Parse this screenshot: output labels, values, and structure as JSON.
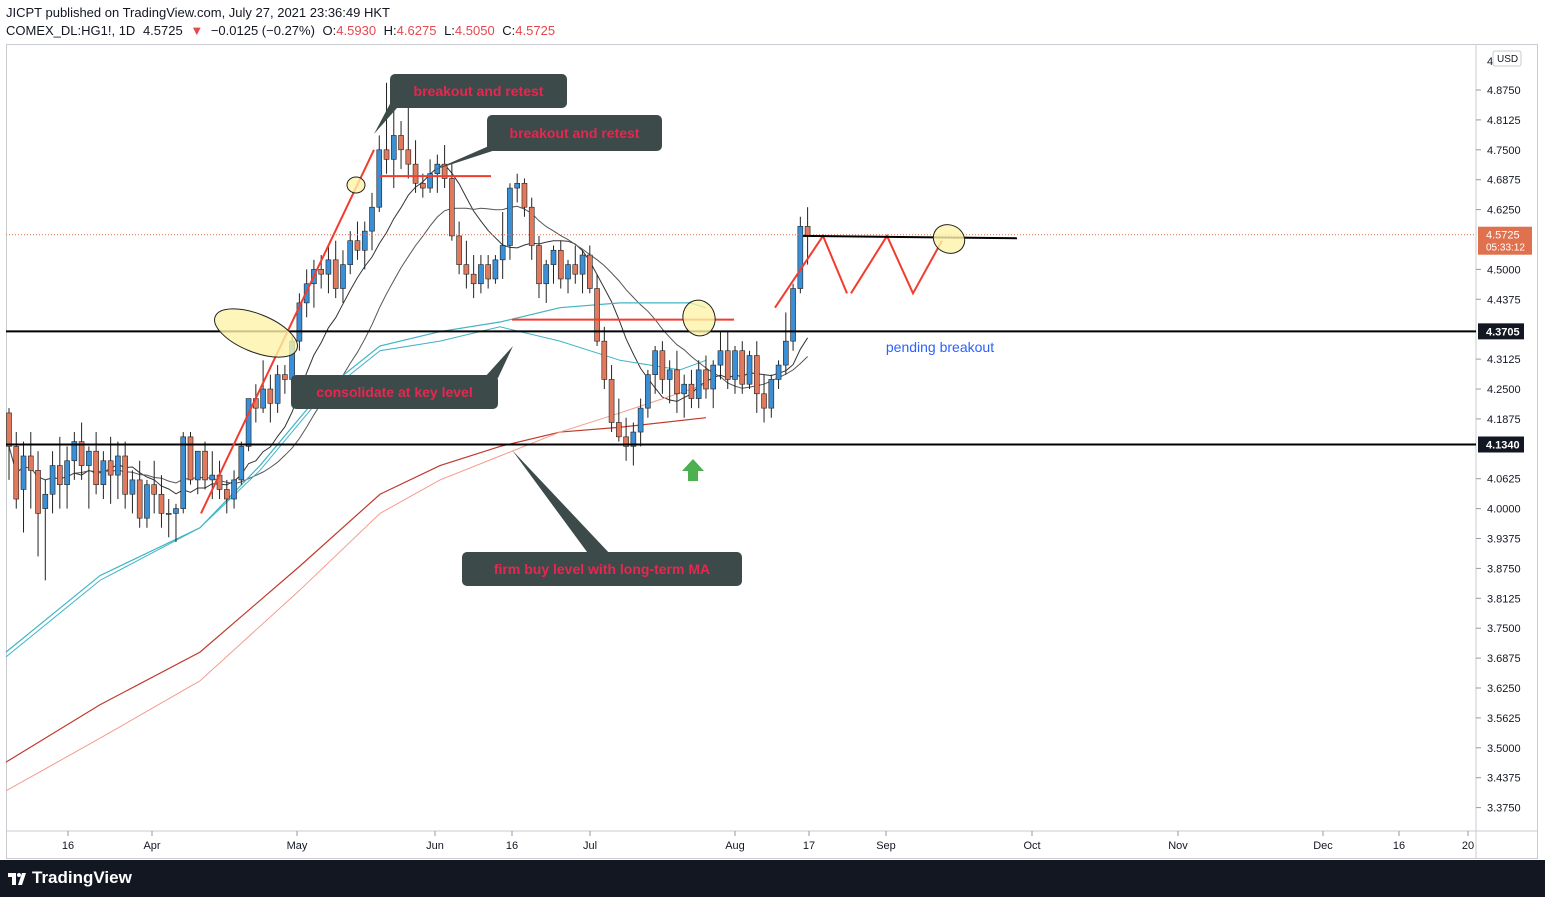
{
  "header": {
    "publisher": "JICPT published on TradingView.com, July 27, 2021 23:36:49 HKT",
    "symbol": "COMEX_DL:HG1!, 1D",
    "last": "4.5725",
    "change_arrow": "▼",
    "change": "−0.0125 (−0.27%)",
    "o_label": "O:",
    "o": "4.5930",
    "h_label": "H:",
    "h": "4.6275",
    "l_label": "L:",
    "l": "4.5050",
    "c_label": "C:",
    "c": "4.5725"
  },
  "footer": {
    "brand": "TradingView"
  },
  "colors": {
    "up": "#3a8fd6",
    "down": "#e07a5f",
    "ma_dark": "#333333",
    "ma_teal": "#40b4c4",
    "ma_red": "#c0392b",
    "ma_salmon": "#f39c8c",
    "trend_red": "#f23c2e",
    "annotation_bg": "#3d4a4a",
    "annotation_text": "#e8264f",
    "highlight_fill": "#fdf3a8",
    "price_label_bg": "#131722",
    "last_price_bg": "#e0714f",
    "arrow_green": "#4caf50",
    "text_blue": "#2962ff"
  },
  "chart_data": {
    "type": "candlestick",
    "title": "",
    "currency": "USD",
    "y_axis_ticks": [
      "4.8750",
      "4.8125",
      "4.7500",
      "4.6875",
      "4.6250",
      "4.5000",
      "4.4375",
      "4.3125",
      "4.2500",
      "4.1875",
      "4.0625",
      "4.0000",
      "3.9375",
      "3.8750",
      "3.8125",
      "3.7500",
      "3.6875",
      "3.6250",
      "3.5625",
      "3.5000",
      "3.4375",
      "3.3750"
    ],
    "y_axis_top_label": "4.",
    "ylim": [
      3.33,
      4.94
    ],
    "x_axis_ticks": [
      "16",
      "Apr",
      "May",
      "Jun",
      "16",
      "Jul",
      "Aug",
      "17",
      "Sep",
      "Oct",
      "Nov",
      "Dec",
      "16",
      "20"
    ],
    "last_price": "4.5725",
    "countdown": "05:33:12",
    "levels": [
      {
        "label": "4.3705",
        "value": 4.3705
      },
      {
        "label": "4.1340",
        "value": 4.134
      }
    ],
    "candles_ohlc": [
      [
        4.2,
        4.21,
        4.06,
        4.13
      ],
      [
        4.13,
        4.16,
        4.0,
        4.02
      ],
      [
        4.04,
        4.14,
        3.95,
        4.11
      ],
      [
        4.11,
        4.16,
        4.0,
        4.08
      ],
      [
        4.08,
        4.12,
        3.9,
        3.99
      ],
      [
        4.0,
        4.06,
        3.85,
        4.03
      ],
      [
        4.03,
        4.12,
        3.99,
        4.09
      ],
      [
        4.09,
        4.15,
        4.0,
        4.05
      ],
      [
        4.05,
        4.13,
        4.0,
        4.1
      ],
      [
        4.1,
        4.16,
        4.06,
        4.14
      ],
      [
        4.14,
        4.18,
        4.06,
        4.09
      ],
      [
        4.09,
        4.13,
        4.0,
        4.12
      ],
      [
        4.12,
        4.16,
        4.03,
        4.05
      ],
      [
        4.05,
        4.12,
        4.02,
        4.1
      ],
      [
        4.1,
        4.15,
        4.01,
        4.07
      ],
      [
        4.07,
        4.14,
        4.02,
        4.11
      ],
      [
        4.11,
        4.14,
        4.0,
        4.03
      ],
      [
        4.03,
        4.08,
        3.99,
        4.06
      ],
      [
        4.06,
        4.1,
        3.96,
        3.98
      ],
      [
        3.98,
        4.06,
        3.96,
        4.05
      ],
      [
        4.05,
        4.1,
        3.99,
        4.03
      ],
      [
        4.03,
        4.07,
        3.96,
        3.99
      ],
      [
        3.99,
        4.02,
        3.94,
        3.99
      ],
      [
        3.99,
        4.01,
        3.93,
        4.0
      ],
      [
        4.0,
        4.16,
        3.99,
        4.15
      ],
      [
        4.15,
        4.16,
        4.05,
        4.06
      ],
      [
        4.06,
        4.12,
        4.03,
        4.12
      ],
      [
        4.12,
        4.14,
        4.04,
        4.06
      ],
      [
        4.06,
        4.12,
        4.02,
        4.07
      ],
      [
        4.07,
        4.1,
        4.02,
        4.04
      ],
      [
        4.04,
        4.06,
        3.99,
        4.02
      ],
      [
        4.02,
        4.08,
        4.0,
        4.06
      ],
      [
        4.06,
        4.14,
        4.05,
        4.13
      ],
      [
        4.13,
        4.23,
        4.12,
        4.23
      ],
      [
        4.23,
        4.26,
        4.18,
        4.21
      ],
      [
        4.21,
        4.31,
        4.2,
        4.25
      ],
      [
        4.25,
        4.28,
        4.18,
        4.22
      ],
      [
        4.22,
        4.3,
        4.2,
        4.28
      ],
      [
        4.28,
        4.3,
        4.24,
        4.27
      ],
      [
        4.27,
        4.36,
        4.25,
        4.35
      ],
      [
        4.35,
        4.45,
        4.33,
        4.43
      ],
      [
        4.43,
        4.5,
        4.4,
        4.47
      ],
      [
        4.47,
        4.52,
        4.42,
        4.5
      ],
      [
        4.5,
        4.53,
        4.46,
        4.49
      ],
      [
        4.49,
        4.55,
        4.45,
        4.52
      ],
      [
        4.52,
        4.56,
        4.44,
        4.46
      ],
      [
        4.46,
        4.54,
        4.43,
        4.51
      ],
      [
        4.51,
        4.58,
        4.49,
        4.56
      ],
      [
        4.56,
        4.6,
        4.52,
        4.54
      ],
      [
        4.54,
        4.6,
        4.5,
        4.58
      ],
      [
        4.58,
        4.66,
        4.54,
        4.63
      ],
      [
        4.63,
        4.78,
        4.62,
        4.75
      ],
      [
        4.75,
        4.89,
        4.7,
        4.73
      ],
      [
        4.73,
        4.84,
        4.67,
        4.78
      ],
      [
        4.78,
        4.81,
        4.71,
        4.75
      ],
      [
        4.75,
        4.86,
        4.69,
        4.72
      ],
      [
        4.72,
        4.77,
        4.66,
        4.68
      ],
      [
        4.68,
        4.7,
        4.65,
        4.67
      ],
      [
        4.67,
        4.73,
        4.66,
        4.7
      ],
      [
        4.7,
        4.74,
        4.66,
        4.72
      ],
      [
        4.72,
        4.76,
        4.67,
        4.69
      ],
      [
        4.69,
        4.72,
        4.56,
        4.57
      ],
      [
        4.57,
        4.6,
        4.49,
        4.51
      ],
      [
        4.51,
        4.56,
        4.46,
        4.49
      ],
      [
        4.49,
        4.53,
        4.44,
        4.47
      ],
      [
        4.47,
        4.53,
        4.45,
        4.51
      ],
      [
        4.51,
        4.53,
        4.46,
        4.48
      ],
      [
        4.48,
        4.53,
        4.47,
        4.52
      ],
      [
        4.52,
        4.62,
        4.48,
        4.55
      ],
      [
        4.55,
        4.68,
        4.52,
        4.67
      ],
      [
        4.67,
        4.7,
        4.64,
        4.68
      ],
      [
        4.68,
        4.69,
        4.61,
        4.63
      ],
      [
        4.63,
        4.65,
        4.52,
        4.55
      ],
      [
        4.55,
        4.57,
        4.44,
        4.47
      ],
      [
        4.47,
        4.52,
        4.43,
        4.51
      ],
      [
        4.51,
        4.55,
        4.47,
        4.54
      ],
      [
        4.54,
        4.56,
        4.46,
        4.48
      ],
      [
        4.48,
        4.52,
        4.45,
        4.51
      ],
      [
        4.51,
        4.55,
        4.47,
        4.49
      ],
      [
        4.49,
        4.54,
        4.45,
        4.53
      ],
      [
        4.53,
        4.55,
        4.45,
        4.46
      ],
      [
        4.46,
        4.49,
        4.34,
        4.35
      ],
      [
        4.35,
        4.38,
        4.25,
        4.27
      ],
      [
        4.27,
        4.3,
        4.16,
        4.18
      ],
      [
        4.18,
        4.23,
        4.14,
        4.15
      ],
      [
        4.15,
        4.19,
        4.1,
        4.13
      ],
      [
        4.13,
        4.18,
        4.09,
        4.16
      ],
      [
        4.16,
        4.23,
        4.13,
        4.21
      ],
      [
        4.21,
        4.29,
        4.19,
        4.28
      ],
      [
        4.28,
        4.34,
        4.24,
        4.33
      ],
      [
        4.33,
        4.35,
        4.24,
        4.27
      ],
      [
        4.27,
        4.31,
        4.22,
        4.29
      ],
      [
        4.29,
        4.33,
        4.2,
        4.24
      ],
      [
        4.24,
        4.28,
        4.19,
        4.26
      ],
      [
        4.26,
        4.29,
        4.21,
        4.23
      ],
      [
        4.23,
        4.31,
        4.21,
        4.29
      ],
      [
        4.29,
        4.32,
        4.23,
        4.25
      ],
      [
        4.25,
        4.31,
        4.21,
        4.3
      ],
      [
        4.3,
        4.37,
        4.27,
        4.33
      ],
      [
        4.33,
        4.37,
        4.25,
        4.27
      ],
      [
        4.27,
        4.34,
        4.24,
        4.33
      ],
      [
        4.33,
        4.35,
        4.24,
        4.26
      ],
      [
        4.26,
        4.33,
        4.25,
        4.32
      ],
      [
        4.32,
        4.35,
        4.2,
        4.24
      ],
      [
        4.24,
        4.28,
        4.18,
        4.21
      ],
      [
        4.21,
        4.28,
        4.19,
        4.27
      ],
      [
        4.27,
        4.31,
        4.25,
        4.3
      ],
      [
        4.3,
        4.41,
        4.28,
        4.35
      ],
      [
        4.35,
        4.47,
        4.33,
        4.46
      ],
      [
        4.46,
        4.61,
        4.45,
        4.59
      ],
      [
        4.59,
        4.63,
        4.51,
        4.57
      ]
    ],
    "annotations": [
      {
        "text": "breakout and retest"
      },
      {
        "text": "breakout and retest"
      },
      {
        "text": "consolidate at key level"
      },
      {
        "text": "firm buy level with long-term MA"
      },
      {
        "text": "pending breakout"
      }
    ]
  }
}
